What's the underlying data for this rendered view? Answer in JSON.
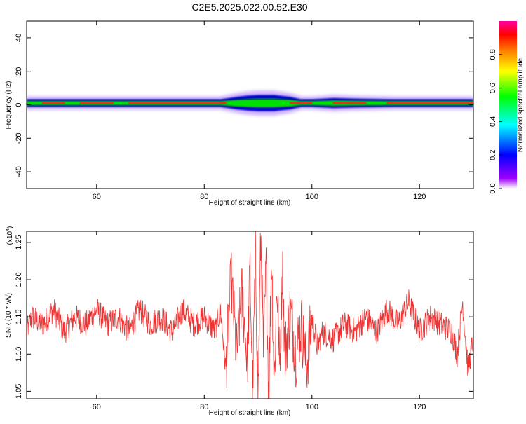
{
  "title": "C2E5.2025.022.00.52.E30",
  "colors": {
    "snr_line": "#ee3333",
    "band_core": "#ff2020",
    "band_mid": "#00e000",
    "band_edge": "#0000cc",
    "halo": "#c8a8ff"
  },
  "chart_data": [
    {
      "type": "heatmap",
      "xlabel": "Height of straight line (km)",
      "ylabel": "Frequency (Hz)",
      "xlim": [
        47,
        130
      ],
      "ylim": [
        -50,
        50
      ],
      "x_ticks": [
        "60",
        "80",
        "100",
        "120"
      ],
      "y_ticks": [
        "40",
        "20",
        "0",
        "-20",
        "-40"
      ],
      "x_tick_values": [
        60,
        80,
        100,
        120
      ],
      "y_tick_values": [
        40,
        20,
        0,
        -20,
        -40
      ],
      "band_center_hz": 1,
      "band_halfwidth_hz": [
        [
          47,
          3
        ],
        [
          55,
          3
        ],
        [
          65,
          3
        ],
        [
          75,
          3
        ],
        [
          83,
          3
        ],
        [
          86,
          5
        ],
        [
          88,
          6
        ],
        [
          90,
          6.5
        ],
        [
          93,
          6.5
        ],
        [
          96,
          5
        ],
        [
          98,
          3
        ],
        [
          100,
          3
        ],
        [
          104,
          4
        ],
        [
          108,
          3.5
        ],
        [
          115,
          3
        ],
        [
          130,
          3
        ]
      ],
      "colorbar": {
        "label": "Normalized spectral amplitude",
        "range": [
          0,
          1
        ],
        "ticks": [
          "0.0",
          "0.2",
          "0.4",
          "0.6",
          "0.8"
        ],
        "tick_values": [
          0,
          0.2,
          0.4,
          0.6,
          0.8
        ],
        "colormap": [
          "#ffffff",
          "#a000ff",
          "#0000ff",
          "#00ffff",
          "#00ff00",
          "#ffff00",
          "#ff8000",
          "#ff0000",
          "#ff00a0"
        ]
      },
      "grid": false
    },
    {
      "type": "line",
      "xlabel": "Height of straight line (km)",
      "ylabel": "SNR (10 * v/v)",
      "y_multiplier": "(x10",
      "y_multiplier_exp": "4",
      "xlim": [
        47,
        130
      ],
      "ylim": [
        1.04,
        1.265
      ],
      "x_ticks": [
        "60",
        "80",
        "100",
        "120"
      ],
      "y_ticks": [
        "1.25",
        "1.20",
        "1.15",
        "1.10",
        "1.05"
      ],
      "x_tick_values": [
        60,
        80,
        100,
        120
      ],
      "y_tick_values": [
        1.25,
        1.2,
        1.15,
        1.1,
        1.05
      ],
      "series": [
        {
          "name": "",
          "x": [
            47,
            48,
            50,
            52,
            54,
            56,
            58,
            60,
            62,
            64,
            66,
            68,
            70,
            72,
            74,
            76,
            78,
            80,
            82,
            83,
            84,
            85,
            86,
            87,
            88,
            88.5,
            89,
            89.5,
            90,
            90.5,
            91,
            91.5,
            92,
            92.5,
            93,
            93.5,
            94,
            94.5,
            95,
            96,
            97,
            98,
            99,
            100,
            101,
            102,
            104,
            106,
            108,
            110,
            112,
            114,
            116,
            118,
            120,
            122,
            124,
            126,
            127,
            128,
            129,
            130
          ],
          "y": [
            1.13,
            1.15,
            1.14,
            1.16,
            1.13,
            1.15,
            1.14,
            1.16,
            1.14,
            1.15,
            1.13,
            1.16,
            1.14,
            1.15,
            1.13,
            1.16,
            1.14,
            1.15,
            1.13,
            1.16,
            1.08,
            1.2,
            1.1,
            1.18,
            1.09,
            1.21,
            1.05,
            1.24,
            1.04,
            1.26,
            1.1,
            1.22,
            1.04,
            1.24,
            1.06,
            1.2,
            1.08,
            1.22,
            1.1,
            1.16,
            1.1,
            1.14,
            1.08,
            1.15,
            1.11,
            1.13,
            1.12,
            1.14,
            1.13,
            1.15,
            1.13,
            1.16,
            1.14,
            1.17,
            1.13,
            1.15,
            1.14,
            1.13,
            1.1,
            1.17,
            1.08,
            1.12
          ]
        }
      ],
      "grid": false
    }
  ]
}
